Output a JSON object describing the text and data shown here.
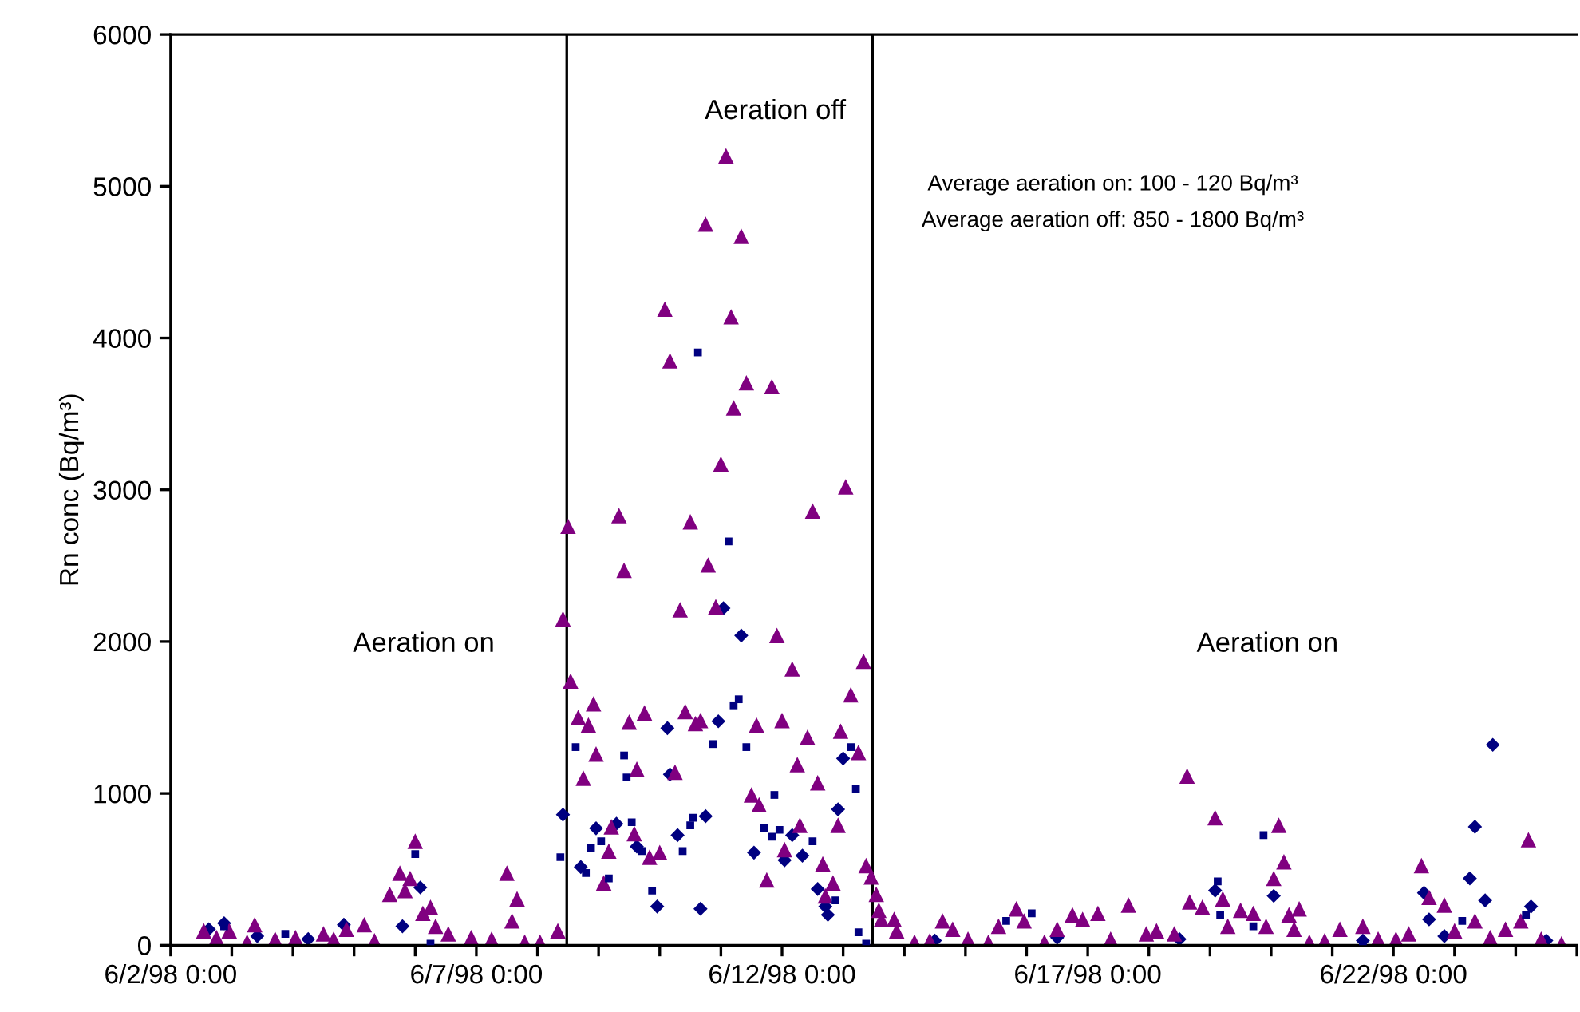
{
  "chart_data": {
    "type": "scatter",
    "ylabel": "Rn conc (Bq/m³)",
    "ylim": [
      0,
      6000
    ],
    "yticks": [
      0,
      1000,
      2000,
      3000,
      4000,
      5000,
      6000
    ],
    "xlim": [
      "1998-06-02T00:00",
      "1998-06-25T00:00"
    ],
    "xticks": [
      {
        "value": "1998-06-02T00:00",
        "label": "6/2/98 0:00"
      },
      {
        "value": "1998-06-03T00:00",
        "label": null
      },
      {
        "value": "1998-06-04T00:00",
        "label": null
      },
      {
        "value": "1998-06-05T00:00",
        "label": null
      },
      {
        "value": "1998-06-06T00:00",
        "label": null
      },
      {
        "value": "1998-06-07T00:00",
        "label": "6/7/98 0:00"
      },
      {
        "value": "1998-06-08T00:00",
        "label": null
      },
      {
        "value": "1998-06-09T00:00",
        "label": null
      },
      {
        "value": "1998-06-10T00:00",
        "label": null
      },
      {
        "value": "1998-06-11T00:00",
        "label": null
      },
      {
        "value": "1998-06-12T00:00",
        "label": "6/12/98 0:00"
      },
      {
        "value": "1998-06-13T00:00",
        "label": null
      },
      {
        "value": "1998-06-14T00:00",
        "label": null
      },
      {
        "value": "1998-06-15T00:00",
        "label": null
      },
      {
        "value": "1998-06-16T00:00",
        "label": null
      },
      {
        "value": "1998-06-17T00:00",
        "label": "6/17/98 0:00"
      },
      {
        "value": "1998-06-18T00:00",
        "label": null
      },
      {
        "value": "1998-06-19T00:00",
        "label": null
      },
      {
        "value": "1998-06-20T00:00",
        "label": null
      },
      {
        "value": "1998-06-21T00:00",
        "label": null
      },
      {
        "value": "1998-06-22T00:00",
        "label": "6/22/98 0:00"
      },
      {
        "value": "1998-06-23T00:00",
        "label": null
      },
      {
        "value": "1998-06-24T00:00",
        "label": null
      },
      {
        "value": "1998-06-25T00:00",
        "label": null
      }
    ],
    "grid": false,
    "ref_lines": [
      {
        "axis": "x",
        "value": "1998-06-08T11:30",
        "color": "#000000"
      },
      {
        "axis": "x",
        "value": "1998-06-13T11:30",
        "color": "#000000"
      }
    ],
    "annotations": [
      "Aeration on",
      "Aeration off",
      "Aeration on",
      "Average aeration on: 100 - 120 Bq/m³",
      "Average aeration off: 850 - 1800 Bq/m³"
    ],
    "series": [
      {
        "color": "#000080",
        "marker": "diamond",
        "x": [
          "1998-06-02T15:00",
          "1998-06-02T21:00",
          "1998-06-03T10:00",
          "1998-06-04T06:00",
          "1998-06-04T20:00",
          "1998-06-05T19:00",
          "1998-06-06T02:00",
          "1998-06-08T10:00",
          "1998-06-08T17:00",
          "1998-06-08T23:00",
          "1998-06-09T07:00",
          "1998-06-09T15:00",
          "1998-06-09T23:00",
          "1998-06-10T03:00",
          "1998-06-10T04:00",
          "1998-06-10T07:00",
          "1998-06-10T16:00",
          "1998-06-10T18:00",
          "1998-06-10T23:00",
          "1998-06-11T01:00",
          "1998-06-11T08:00",
          "1998-06-11T13:00",
          "1998-06-12T01:00",
          "1998-06-12T04:00",
          "1998-06-12T08:00",
          "1998-06-12T14:00",
          "1998-06-12T17:00",
          "1998-06-12T18:00",
          "1998-06-12T22:00",
          "1998-06-13T00:00",
          "1998-06-14T12:00",
          "1998-06-16T12:00",
          "1998-06-18T12:00",
          "1998-06-19T02:00",
          "1998-06-20T01:00",
          "1998-06-21T12:00",
          "1998-06-22T12:00",
          "1998-06-22T14:00",
          "1998-06-22T20:00",
          "1998-06-23T06:00",
          "1998-06-23T08:00",
          "1998-06-23T12:00",
          "1998-06-23T15:00",
          "1998-06-24T06:00",
          "1998-06-24T12:00"
        ],
        "values": [
          105,
          145,
          60,
          40,
          135,
          125,
          380,
          860,
          515,
          770,
          800,
          650,
          255,
          1430,
          1125,
          725,
          240,
          850,
          1475,
          2220,
          2040,
          610,
          560,
          725,
          590,
          370,
          255,
          200,
          895,
          1230,
          30,
          50,
          40,
          360,
          325,
          30,
          345,
          170,
          60,
          440,
          780,
          295,
          1320,
          255,
          30
        ]
      },
      {
        "color": "#000080",
        "marker": "square",
        "x": [
          "1998-06-02T21:00",
          "1998-06-03T21:00",
          "1998-06-06T00:00",
          "1998-06-06T06:00",
          "1998-06-08T09:00",
          "1998-06-08T15:00",
          "1998-06-08T19:00",
          "1998-06-08T21:00",
          "1998-06-09T01:00",
          "1998-06-09T04:00",
          "1998-06-09T10:00",
          "1998-06-09T11:00",
          "1998-06-09T13:00",
          "1998-06-09T17:00",
          "1998-06-09T21:00",
          "1998-06-10T09:00",
          "1998-06-10T12:00",
          "1998-06-10T13:00",
          "1998-06-10T15:00",
          "1998-06-10T21:00",
          "1998-06-11T03:00",
          "1998-06-11T05:00",
          "1998-06-11T07:00",
          "1998-06-11T10:00",
          "1998-06-11T17:00",
          "1998-06-11T20:00",
          "1998-06-11T21:00",
          "1998-06-11T23:00",
          "1998-06-12T12:00",
          "1998-06-12T21:00",
          "1998-06-13T03:00",
          "1998-06-13T05:00",
          "1998-06-13T06:00",
          "1998-06-13T09:00",
          "1998-06-15T16:00",
          "1998-06-16T02:00",
          "1998-06-19T03:00",
          "1998-06-19T04:00",
          "1998-06-19T17:00",
          "1998-06-19T21:00",
          "1998-06-21T12:00",
          "1998-06-23T03:00",
          "1998-06-24T04:00"
        ],
        "values": [
          125,
          75,
          600,
          10,
          580,
          1305,
          475,
          640,
          685,
          440,
          1250,
          1105,
          810,
          620,
          360,
          620,
          790,
          840,
          3905,
          1325,
          2660,
          1580,
          1620,
          1305,
          770,
          715,
          990,
          760,
          685,
          295,
          1305,
          1030,
          85,
          10,
          160,
          210,
          420,
          200,
          125,
          725,
          20,
          160,
          200
        ]
      },
      {
        "color": "#800080",
        "marker": "triangle",
        "x": [
          "1998-06-02T13:00",
          "1998-06-02T18:00",
          "1998-06-02T23:00",
          "1998-06-03T06:00",
          "1998-06-03T09:00",
          "1998-06-03T17:00",
          "1998-06-04T01:00",
          "1998-06-04T12:00",
          "1998-06-04T16:00",
          "1998-06-04T21:00",
          "1998-06-05T04:00",
          "1998-06-05T08:00",
          "1998-06-05T14:00",
          "1998-06-05T18:00",
          "1998-06-05T20:00",
          "1998-06-05T22:00",
          "1998-06-06T00:00",
          "1998-06-06T03:00",
          "1998-06-06T06:00",
          "1998-06-06T08:00",
          "1998-06-06T13:00",
          "1998-06-06T22:00",
          "1998-06-07T06:00",
          "1998-06-07T12:00",
          "1998-06-07T14:00",
          "1998-06-07T16:00",
          "1998-06-07T19:00",
          "1998-06-08T01:00",
          "1998-06-08T08:00",
          "1998-06-08T10:00",
          "1998-06-08T12:00",
          "1998-06-08T13:00",
          "1998-06-08T16:00",
          "1998-06-08T18:00",
          "1998-06-08T20:00",
          "1998-06-08T22:00",
          "1998-06-08T23:00",
          "1998-06-09T02:00",
          "1998-06-09T04:00",
          "1998-06-09T05:00",
          "1998-06-09T08:00",
          "1998-06-09T10:00",
          "1998-06-09T12:00",
          "1998-06-09T14:00",
          "1998-06-09T15:00",
          "1998-06-09T18:00",
          "1998-06-09T20:00",
          "1998-06-10T00:00",
          "1998-06-10T02:00",
          "1998-06-10T04:00",
          "1998-06-10T06:00",
          "1998-06-10T08:00",
          "1998-06-10T10:00",
          "1998-06-10T12:00",
          "1998-06-10T14:00",
          "1998-06-10T16:00",
          "1998-06-10T18:00",
          "1998-06-10T19:00",
          "1998-06-10T22:00",
          "1998-06-11T00:00",
          "1998-06-11T02:00",
          "1998-06-11T04:00",
          "1998-06-11T05:00",
          "1998-06-11T08:00",
          "1998-06-11T10:00",
          "1998-06-11T12:00",
          "1998-06-11T14:00",
          "1998-06-11T15:00",
          "1998-06-11T18:00",
          "1998-06-11T20:00",
          "1998-06-11T22:00",
          "1998-06-12T00:00",
          "1998-06-12T01:00",
          "1998-06-12T04:00",
          "1998-06-12T06:00",
          "1998-06-12T07:00",
          "1998-06-12T10:00",
          "1998-06-12T12:00",
          "1998-06-12T14:00",
          "1998-06-12T16:00",
          "1998-06-12T17:00",
          "1998-06-12T20:00",
          "1998-06-12T22:00",
          "1998-06-12T23:00",
          "1998-06-13T01:00",
          "1998-06-13T03:00",
          "1998-06-13T06:00",
          "1998-06-13T08:00",
          "1998-06-13T09:00",
          "1998-06-13T11:00",
          "1998-06-13T13:00",
          "1998-06-13T14:00",
          "1998-06-13T15:00",
          "1998-06-13T20:00",
          "1998-06-13T21:00",
          "1998-06-14T04:00",
          "1998-06-14T10:00",
          "1998-06-14T15:00",
          "1998-06-14T19:00",
          "1998-06-15T01:00",
          "1998-06-15T09:00",
          "1998-06-15T13:00",
          "1998-06-15T20:00",
          "1998-06-15T23:00",
          "1998-06-16T07:00",
          "1998-06-16T12:00",
          "1998-06-16T18:00",
          "1998-06-16T22:00",
          "1998-06-17T04:00",
          "1998-06-17T09:00",
          "1998-06-17T16:00",
          "1998-06-17T23:00",
          "1998-06-18T03:00",
          "1998-06-18T10:00",
          "1998-06-18T15:00",
          "1998-06-18T16:00",
          "1998-06-18T21:00",
          "1998-06-19T02:00",
          "1998-06-19T05:00",
          "1998-06-19T07:00",
          "1998-06-19T12:00",
          "1998-06-19T17:00",
          "1998-06-19T22:00",
          "1998-06-20T01:00",
          "1998-06-20T03:00",
          "1998-06-20T05:00",
          "1998-06-20T07:00",
          "1998-06-20T09:00",
          "1998-06-20T11:00",
          "1998-06-20T15:00",
          "1998-06-20T21:00",
          "1998-06-21T03:00",
          "1998-06-21T12:00",
          "1998-06-21T18:00",
          "1998-06-22T01:00",
          "1998-06-22T06:00",
          "1998-06-22T11:00",
          "1998-06-22T14:00",
          "1998-06-22T20:00",
          "1998-06-23T00:00",
          "1998-06-23T08:00",
          "1998-06-23T14:00",
          "1998-06-23T20:00",
          "1998-06-24T02:00",
          "1998-06-24T05:00",
          "1998-06-24T10:00",
          "1998-06-24T18:00"
        ],
        "values": [
          95,
          50,
          95,
          20,
          135,
          40,
          50,
          75,
          40,
          105,
          135,
          30,
          335,
          475,
          360,
          440,
          685,
          210,
          250,
          125,
          75,
          50,
          40,
          475,
          160,
          305,
          20,
          20,
          95,
          2150,
          2760,
          1740,
          1500,
          1100,
          1450,
          1590,
          1260,
          410,
          620,
          780,
          2830,
          2470,
          1470,
          735,
          1160,
          1530,
          580,
          610,
          4190,
          3850,
          1140,
          2210,
          1540,
          2790,
          1460,
          1480,
          4750,
          2505,
          2230,
          3170,
          5200,
          4140,
          3540,
          4670,
          3705,
          990,
          1450,
          925,
          430,
          3680,
          2040,
          1480,
          630,
          1820,
          1190,
          790,
          1370,
          2860,
          1070,
          535,
          325,
          410,
          790,
          1410,
          3020,
          1650,
          1270,
          1870,
          525,
          450,
          335,
          230,
          170,
          170,
          95,
          20,
          30,
          160,
          105,
          40,
          20,
          125,
          240,
          160,
          20,
          105,
          200,
          170,
          210,
          40,
          265,
          75,
          95,
          75,
          1115,
          285,
          250,
          840,
          305,
          125,
          230,
          210,
          125,
          440,
          790,
          550,
          200,
          105,
          240,
          20,
          30,
          105,
          125,
          40,
          40,
          75,
          525,
          315,
          265,
          95,
          160,
          50,
          105,
          160,
          695,
          40,
          10
        ]
      }
    ]
  }
}
